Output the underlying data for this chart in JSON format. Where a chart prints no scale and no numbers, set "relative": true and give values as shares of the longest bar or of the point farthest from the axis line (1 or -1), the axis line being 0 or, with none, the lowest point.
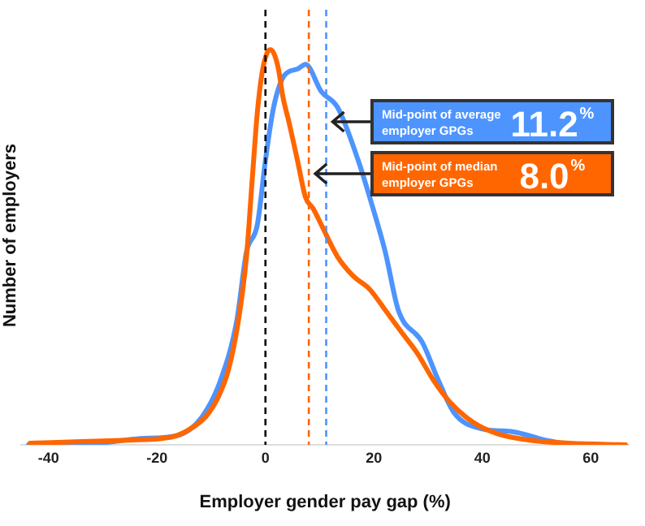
{
  "chart_data": {
    "type": "line",
    "relative": true,
    "xlabel": "Employer gender pay gap (%)",
    "ylabel": "Number of employers",
    "xlim": [
      -45,
      67
    ],
    "xticks": [
      -40,
      -20,
      0,
      20,
      40,
      60
    ],
    "grid": false,
    "legend": false,
    "marker": "none",
    "line_style": "solid",
    "series": [
      {
        "color": "#ff6600",
        "x": [
          -43.4,
          -33.9,
          -25.1,
          -19.2,
          -16.2,
          -13.3,
          -10.9,
          -8.8,
          -6.8,
          -5.0,
          -3.5,
          -2.4,
          -1.5,
          -0.6,
          0.3,
          0.9,
          1.5,
          2.4,
          3.2,
          4.4,
          5.9,
          7.4,
          8.8,
          10.3,
          13.3,
          16.2,
          19.2,
          22.1,
          25.1,
          28.0,
          31.0,
          33.9,
          38.3,
          42.8,
          48.7,
          56.0,
          66.4
        ],
        "values": [
          0.004,
          0.008,
          0.012,
          0.016,
          0.024,
          0.045,
          0.073,
          0.118,
          0.191,
          0.313,
          0.476,
          0.679,
          0.841,
          0.943,
          0.992,
          1.0,
          0.992,
          0.951,
          0.882,
          0.813,
          0.72,
          0.626,
          0.598,
          0.557,
          0.476,
          0.427,
          0.394,
          0.341,
          0.285,
          0.232,
          0.163,
          0.11,
          0.057,
          0.028,
          0.012,
          0.004,
          0
        ]
      },
      {
        "color": "#4d94ff",
        "x": [
          -43.7,
          -31.0,
          -23.0,
          -16.2,
          -11.8,
          -8.3,
          -5.3,
          -3.5,
          -1.5,
          0,
          1.5,
          3.5,
          5.9,
          7.4,
          10.3,
          13.3,
          17.1,
          19.8,
          22.1,
          24.5,
          28.9,
          31.9,
          34.8,
          39.8,
          45.7,
          51.6,
          57.5,
          65.8
        ],
        "values": [
          0,
          0.004,
          0.016,
          0.024,
          0.069,
          0.163,
          0.313,
          0.488,
          0.557,
          0.72,
          0.854,
          0.935,
          0.951,
          0.963,
          0.894,
          0.854,
          0.72,
          0.6,
          0.488,
          0.341,
          0.26,
          0.163,
          0.081,
          0.041,
          0.033,
          0.012,
          0,
          0
        ]
      }
    ],
    "ref_lines": [
      {
        "axis": "x",
        "value": 0,
        "color": "#000000",
        "line_style": "dashed"
      },
      {
        "axis": "x",
        "value": 8.0,
        "color": "#ff6600",
        "line_style": "dashed",
        "label": "Mid-point of median employer GPGs 8.0%"
      },
      {
        "axis": "x",
        "value": 11.2,
        "color": "#4d94ff",
        "line_style": "dashed",
        "label": "Mid-point of average employer GPGs 11.2%"
      }
    ]
  }
}
